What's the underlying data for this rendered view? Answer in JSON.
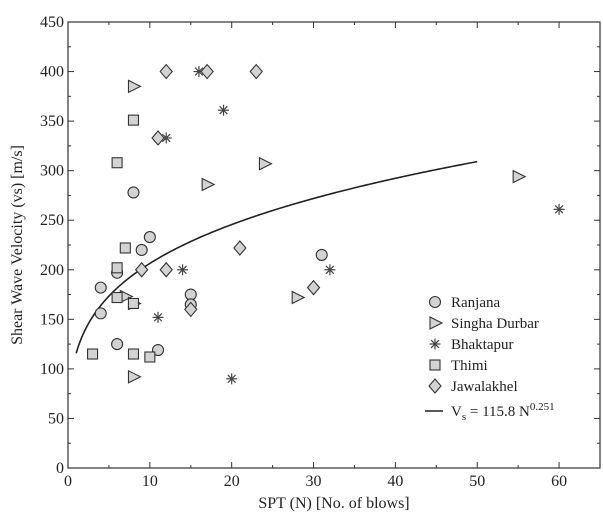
{
  "chart_data": {
    "type": "scatter",
    "title": "",
    "xlabel": "SPT (N) [No. of blows]",
    "ylabel": "Shear Wave Velocity (vs) [m/s]",
    "xlim": [
      0,
      65
    ],
    "ylim": [
      0,
      450
    ],
    "x_ticks": [
      0,
      10,
      20,
      30,
      40,
      50,
      60
    ],
    "y_ticks": [
      0,
      50,
      100,
      150,
      200,
      250,
      300,
      350,
      400,
      450
    ],
    "grid": false,
    "legend_position": "bottom-right",
    "series": [
      {
        "name": "Ranjana",
        "marker": "circle",
        "color": "#d3d3d3",
        "points": [
          [
            4,
            182
          ],
          [
            4,
            156
          ],
          [
            6,
            197
          ],
          [
            6,
            125
          ],
          [
            8,
            278
          ],
          [
            9,
            220
          ],
          [
            10,
            233
          ],
          [
            11,
            119
          ],
          [
            15,
            175
          ],
          [
            15,
            165
          ],
          [
            31,
            215
          ]
        ]
      },
      {
        "name": "Singha Durbar",
        "marker": "triangle-right",
        "color": "#d3d3d3",
        "points": [
          [
            8,
            385
          ],
          [
            7,
            173
          ],
          [
            8,
            166
          ],
          [
            8,
            92
          ],
          [
            17,
            286
          ],
          [
            24,
            307
          ],
          [
            28,
            172
          ],
          [
            55,
            294
          ]
        ]
      },
      {
        "name": "Bhaktapur",
        "marker": "asterisk",
        "color": "#444444",
        "points": [
          [
            12,
            333
          ],
          [
            16,
            400
          ],
          [
            19,
            361
          ],
          [
            14,
            200
          ],
          [
            11,
            152
          ],
          [
            20,
            90
          ],
          [
            32,
            200
          ],
          [
            60,
            261
          ]
        ]
      },
      {
        "name": "Thimi",
        "marker": "square",
        "color": "#d3d3d3",
        "points": [
          [
            3,
            115
          ],
          [
            6,
            308
          ],
          [
            6,
            202
          ],
          [
            6,
            172
          ],
          [
            7,
            222
          ],
          [
            8,
            351
          ],
          [
            8,
            166
          ],
          [
            8,
            115
          ],
          [
            10,
            112
          ]
        ]
      },
      {
        "name": "Jawalakhel",
        "marker": "diamond",
        "color": "#d3d3d3",
        "points": [
          [
            12,
            400
          ],
          [
            17,
            400
          ],
          [
            23,
            400
          ],
          [
            11,
            333
          ],
          [
            9,
            200
          ],
          [
            12,
            200
          ],
          [
            15,
            160
          ],
          [
            21,
            222
          ],
          [
            30,
            182
          ]
        ]
      }
    ],
    "fit": {
      "legend_text_prefix": "V",
      "legend_text_subscript": "s",
      "legend_text_middle": " = 115.8 N",
      "legend_text_superscript": "0.251",
      "coefficient": 115.8,
      "exponent": 0.251,
      "x_range": [
        1,
        50
      ]
    }
  }
}
